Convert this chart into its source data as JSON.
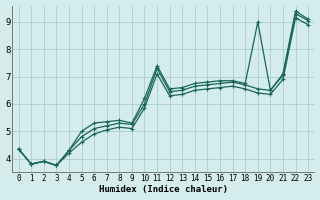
{
  "xlabel": "Humidex (Indice chaleur)",
  "background_color": "#d4ecec",
  "grid_color": "#aecccc",
  "line_color": "#1a6655",
  "xlim": [
    -0.5,
    23.5
  ],
  "ylim": [
    3.5,
    9.6
  ],
  "xticks": [
    0,
    1,
    2,
    3,
    4,
    5,
    6,
    7,
    8,
    9,
    10,
    11,
    12,
    13,
    14,
    15,
    16,
    17,
    18,
    19,
    20,
    21,
    22,
    23
  ],
  "yticks": [
    4,
    5,
    6,
    7,
    8,
    9
  ],
  "line1": [
    4.35,
    3.8,
    3.9,
    3.75,
    4.3,
    5.0,
    5.3,
    5.35,
    5.4,
    5.3,
    6.2,
    7.4,
    6.55,
    6.6,
    6.75,
    6.8,
    6.85,
    6.85,
    6.75,
    9.0,
    6.5,
    7.1,
    9.4,
    9.1
  ],
  "line2": [
    4.35,
    3.8,
    3.9,
    3.75,
    4.3,
    4.8,
    5.1,
    5.2,
    5.3,
    5.25,
    6.0,
    7.3,
    6.45,
    6.5,
    6.65,
    6.7,
    6.75,
    6.8,
    6.7,
    6.55,
    6.5,
    7.05,
    9.3,
    9.05
  ],
  "line3": [
    4.35,
    3.8,
    3.9,
    3.75,
    4.2,
    4.6,
    4.9,
    5.05,
    5.15,
    5.1,
    5.85,
    7.1,
    6.3,
    6.35,
    6.5,
    6.55,
    6.6,
    6.65,
    6.55,
    6.4,
    6.35,
    6.9,
    9.15,
    8.9
  ],
  "marker": "+",
  "markersize": 3,
  "linewidth": 0.9,
  "tick_fontsize": 5.5,
  "xlabel_fontsize": 6.5
}
